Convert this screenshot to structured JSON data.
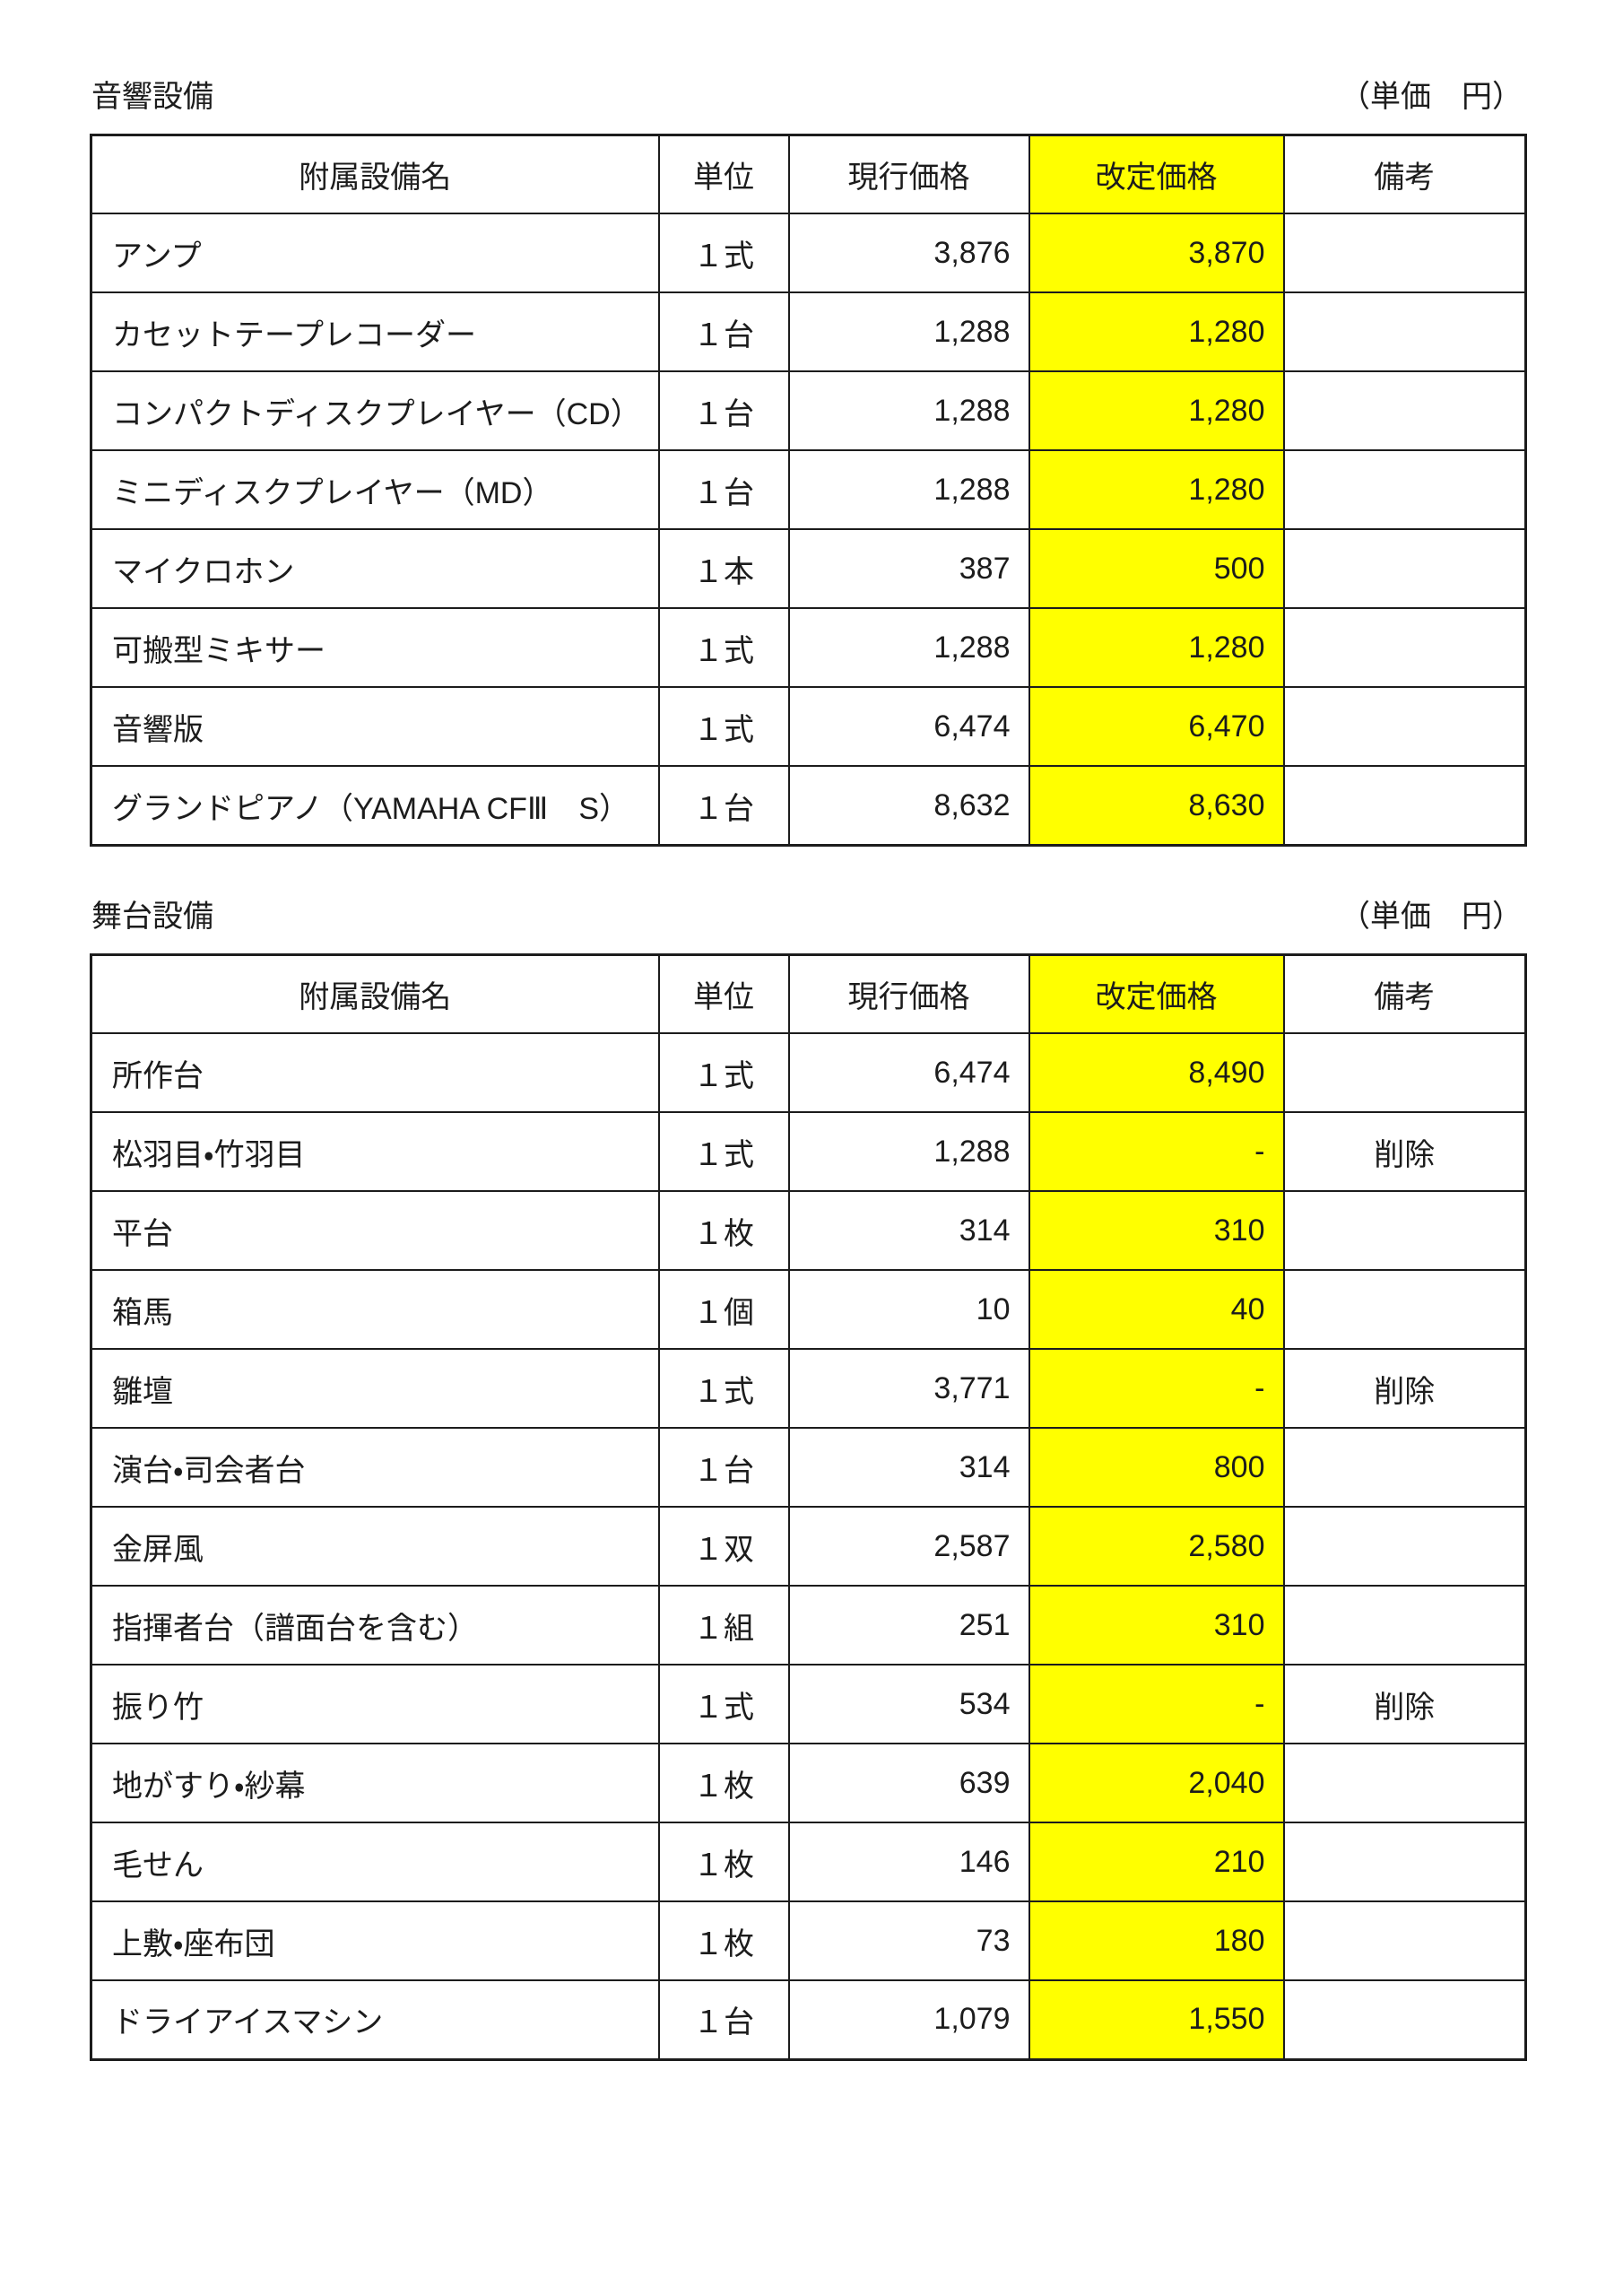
{
  "colors": {
    "highlight_yellow": "#ffff00",
    "border": "#1c1c1c",
    "text": "#1c1c1c"
  },
  "tables": [
    {
      "title": "音響設備",
      "unit_note": "（単価　円）",
      "headers": [
        "附属設備名",
        "単位",
        "現行価格",
        "改定価格",
        "備考"
      ],
      "rows": [
        {
          "name": "アンプ",
          "unit": "１式",
          "current": "3,876",
          "revised": "3,870",
          "remarks": ""
        },
        {
          "name": "カセットテープレコーダー",
          "unit": "１台",
          "current": "1,288",
          "revised": "1,280",
          "remarks": ""
        },
        {
          "name": "コンパクトディスクプレイヤー（CD）",
          "unit": "１台",
          "current": "1,288",
          "revised": "1,280",
          "remarks": ""
        },
        {
          "name": "ミニディスクプレイヤー（MD）",
          "unit": "１台",
          "current": "1,288",
          "revised": "1,280",
          "remarks": ""
        },
        {
          "name": "マイクロホン",
          "unit": "１本",
          "current": "387",
          "revised": "500",
          "remarks": ""
        },
        {
          "name": "可搬型ミキサー",
          "unit": "１式",
          "current": "1,288",
          "revised": "1,280",
          "remarks": ""
        },
        {
          "name": "音響版",
          "unit": "１式",
          "current": "6,474",
          "revised": "6,470",
          "remarks": ""
        },
        {
          "name": "グランドピアノ（YAMAHA CFⅢ　S）",
          "unit": "１台",
          "current": "8,632",
          "revised": "8,630",
          "remarks": ""
        }
      ]
    },
    {
      "title": "舞台設備",
      "unit_note": "（単価　円）",
      "headers": [
        "附属設備名",
        "単位",
        "現行価格",
        "改定価格",
        "備考"
      ],
      "rows": [
        {
          "name": "所作台",
          "unit": "１式",
          "current": "6,474",
          "revised": "8,490",
          "remarks": ""
        },
        {
          "name": "松羽目・竹羽目",
          "unit": "１式",
          "current": "1,288",
          "revised": "-",
          "remarks": "削除"
        },
        {
          "name": "平台",
          "unit": "１枚",
          "current": "314",
          "revised": "310",
          "remarks": ""
        },
        {
          "name": "箱馬",
          "unit": "１個",
          "current": "10",
          "revised": "40",
          "remarks": ""
        },
        {
          "name": "雛壇",
          "unit": "１式",
          "current": "3,771",
          "revised": "-",
          "remarks": "削除"
        },
        {
          "name": "演台・司会者台",
          "unit": "１台",
          "current": "314",
          "revised": "800",
          "remarks": ""
        },
        {
          "name": "金屏風",
          "unit": "１双",
          "current": "2,587",
          "revised": "2,580",
          "remarks": ""
        },
        {
          "name": "指揮者台（譜面台を含む）",
          "unit": "１組",
          "current": "251",
          "revised": "310",
          "remarks": ""
        },
        {
          "name": "振り竹",
          "unit": "１式",
          "current": "534",
          "revised": "-",
          "remarks": "削除"
        },
        {
          "name": "地がすり・紗幕",
          "unit": "１枚",
          "current": "639",
          "revised": "2,040",
          "remarks": ""
        },
        {
          "name": "毛せん",
          "unit": "１枚",
          "current": "146",
          "revised": "210",
          "remarks": ""
        },
        {
          "name": "上敷・座布団",
          "unit": "１枚",
          "current": "73",
          "revised": "180",
          "remarks": ""
        },
        {
          "name": "ドライアイスマシン",
          "unit": "１台",
          "current": "1,079",
          "revised": "1,550",
          "remarks": ""
        }
      ]
    }
  ]
}
